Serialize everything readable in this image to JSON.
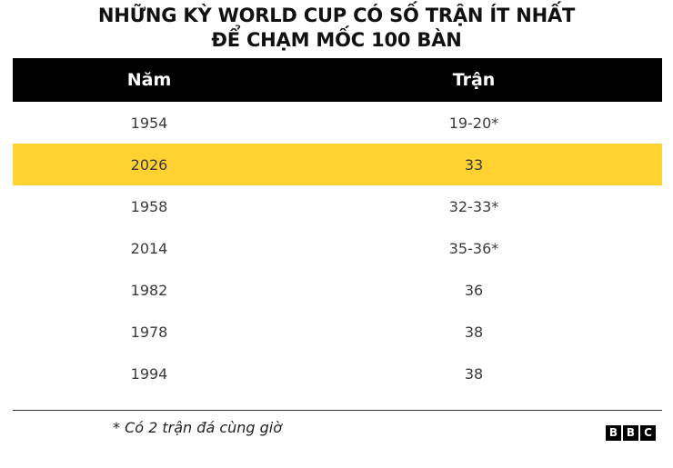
{
  "title_line1": "NHỮNG KỲ WORLD CUP CÓ SỐ TRẬN ÍT NHẤT",
  "title_line2": "ĐỂ CHẠM MỐC 100 BÀN",
  "chart_data": {
    "type": "table",
    "title": "NHỮNG KỲ WORLD CUP CÓ SỐ TRẬN ÍT NHẤT ĐỂ CHẠM MỐC 100 BÀN",
    "columns": [
      "Năm",
      "Trận"
    ],
    "rows": [
      {
        "year": "1954",
        "matches": "19-20*",
        "highlight": false
      },
      {
        "year": "2026",
        "matches": "33",
        "highlight": true
      },
      {
        "year": "1958",
        "matches": "32-33*",
        "highlight": false
      },
      {
        "year": "2014",
        "matches": "35-36*",
        "highlight": false
      },
      {
        "year": "1982",
        "matches": "36",
        "highlight": false
      },
      {
        "year": "1978",
        "matches": "38",
        "highlight": false
      },
      {
        "year": "1994",
        "matches": "38",
        "highlight": false
      }
    ],
    "highlight_color": "#ffd232",
    "header_color": "#000000"
  },
  "footnote": "* Có 2 trận đá cùng giờ",
  "logo": {
    "letters": [
      "B",
      "B",
      "C"
    ]
  }
}
